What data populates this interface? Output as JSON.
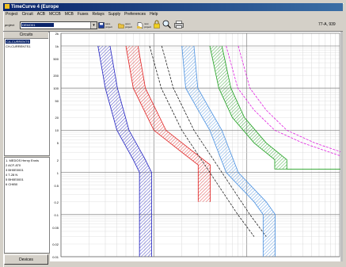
{
  "window": {
    "title": "TimeCurve 4 (Europe"
  },
  "menu": [
    "Project",
    "Circuit",
    "ACB",
    "MCCB",
    "MCB",
    "Fuses",
    "Relays",
    "Supply",
    "Preferences",
    "Help"
  ],
  "toolbar": {
    "project_label": "project",
    "project_value": "DEMO01",
    "buttons": [
      {
        "icon": "save-project-icon",
        "label": "save project"
      },
      {
        "icon": "open-project-icon",
        "label": "open project"
      },
      {
        "icon": "new-project-icon",
        "label": "new project"
      },
      {
        "icon": "lock-icon",
        "label": ""
      },
      {
        "icon": "zoom-icon",
        "label": ""
      },
      {
        "icon": "print-icon",
        "label": ""
      }
    ],
    "scale_readout": "77-A, 939"
  },
  "circuits": {
    "title": "Circuits",
    "items": [
      "CA-CURRENTS",
      "CH-CURRENTS1"
    ]
  },
  "devices": {
    "items": [
      "1. MEDOS Henry Ennis",
      "2 ACF-870",
      "3 BH0E0001",
      "4 T-28 N",
      "5 BH0E0001",
      "6 CHIB0"
    ],
    "button": "Devices"
  },
  "chart_data": {
    "type": "line",
    "title": "",
    "xlabel": "",
    "ylabel": "",
    "x_scale": "log",
    "y_scale": "log",
    "grid": true,
    "y_ticks": [
      "2k",
      "1k",
      "500",
      "200",
      "100",
      "50",
      "20",
      "10",
      "5",
      "2",
      "1",
      "0.5",
      "0.2",
      "0.1",
      "0.05",
      "0.02",
      "0.01"
    ],
    "x_ticks": [
      "",
      "",
      "",
      "",
      ""
    ],
    "series": [
      {
        "color": "#2020c0",
        "style": "hatched-band",
        "points": [
          [
            0.25,
            1000
          ],
          [
            0.3,
            100
          ],
          [
            0.4,
            10
          ],
          [
            0.6,
            2
          ],
          [
            0.7,
            1
          ],
          [
            0.7,
            0.01
          ]
        ]
      },
      {
        "color": "#e02020",
        "style": "hatched-band",
        "points": [
          [
            0.5,
            1000
          ],
          [
            0.6,
            100
          ],
          [
            1.0,
            10
          ],
          [
            2.0,
            3
          ],
          [
            3.0,
            1.5
          ],
          [
            3.0,
            0.2
          ]
        ]
      },
      {
        "color": "#202020",
        "style": "dashed-band",
        "points": [
          [
            0.9,
            1000
          ],
          [
            1.2,
            100
          ],
          [
            2.0,
            10
          ],
          [
            4.0,
            1
          ],
          [
            8.0,
            0.1
          ],
          [
            12.0,
            0.03
          ]
        ]
      },
      {
        "color": "#4a90e0",
        "style": "hatched-band",
        "points": [
          [
            2.0,
            1000
          ],
          [
            2.2,
            100
          ],
          [
            3.0,
            30
          ],
          [
            4.0,
            10
          ],
          [
            6.0,
            1
          ],
          [
            12.0,
            0.2
          ],
          [
            15.0,
            0.1
          ],
          [
            15.0,
            0.01
          ]
        ]
      },
      {
        "color": "#20a020",
        "style": "hatched-band",
        "points": [
          [
            4.0,
            1000
          ],
          [
            5.0,
            100
          ],
          [
            7.0,
            20
          ],
          [
            12.0,
            5
          ],
          [
            20.0,
            2
          ],
          [
            20.0,
            1.2
          ],
          [
            100.0,
            1.2
          ]
        ]
      },
      {
        "color": "#e020e0",
        "style": "dashed-band",
        "points": [
          [
            6.0,
            1000
          ],
          [
            8.0,
            100
          ],
          [
            12.0,
            30
          ],
          [
            20.0,
            10
          ],
          [
            40.0,
            5
          ],
          [
            100.0,
            2.5
          ]
        ]
      }
    ]
  }
}
